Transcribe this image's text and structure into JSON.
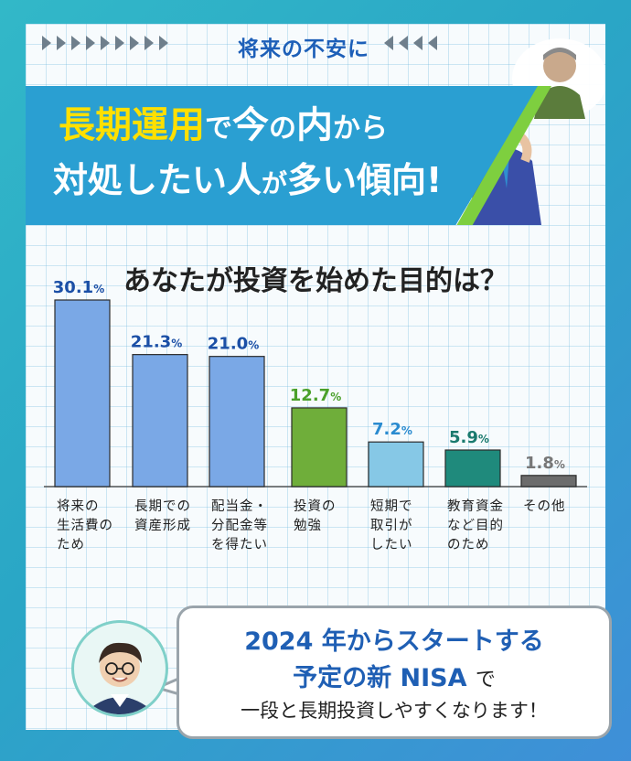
{
  "header": {
    "kicker": "将来の不安に",
    "headline_line1_a": "長期運用",
    "headline_line1_b": "で",
    "headline_line1_c": "今",
    "headline_line1_d": "の",
    "headline_line1_e": "内",
    "headline_line1_f": "から",
    "headline_line2_a": "対処したい",
    "headline_line2_b": "人",
    "headline_line2_c": "が",
    "headline_line2_d": "多い傾向!"
  },
  "colors": {
    "blue_bar": "#7aa8e6",
    "green_bar": "#6fae3a",
    "lightblue_bar": "#86c8e6",
    "teal_bar": "#1f8a7c",
    "gray_bar": "#6c6c6c",
    "blue_label": "#1b4fa6",
    "green_label": "#4aa02a",
    "lightblue_label": "#2a8bd0",
    "teal_label": "#1a7a6e",
    "gray_label": "#777777"
  },
  "chart_data": {
    "type": "bar",
    "title": "あなたが投資を始めた目的は？",
    "categories": [
      "将来の\n生活費の\nため",
      "長期での\n資産形成",
      "配当金・\n分配金等\nを得たい",
      "投資の\n勉強",
      "短期で\n取引が\nしたい",
      "教育資金\nなど目的\nのため",
      "その他"
    ],
    "values": [
      30.1,
      21.3,
      21.0,
      12.7,
      7.2,
      5.9,
      1.8
    ],
    "value_labels": [
      "30.1",
      "21.3",
      "21.0",
      "12.7",
      "7.2",
      "5.9",
      "1.8"
    ],
    "unit": "%",
    "bar_colors": [
      "blue",
      "blue",
      "blue",
      "green",
      "lightblue",
      "teal",
      "gray"
    ],
    "ylim": [
      0,
      30.1
    ]
  },
  "bubble": {
    "line1": "2024 年からスタートする",
    "line2_a": "予定の新 NISA",
    "line2_b": "で",
    "line3": "一段と長期投資しやすくなります！"
  }
}
